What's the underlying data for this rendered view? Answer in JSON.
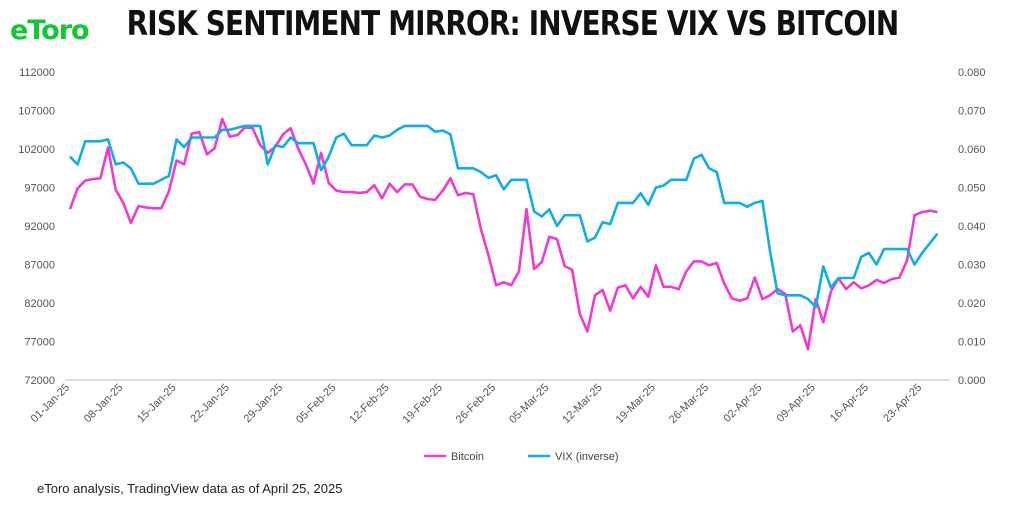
{
  "brand": {
    "logo_text": "eToro",
    "accent": "#13c636"
  },
  "source_note": "eToro analysis, TradingView data as of April 25, 2025",
  "chart_data": {
    "type": "line",
    "title": "RISK SENTIMENT MIRROR: INVERSE VIX VS BITCOIN",
    "x_tick_labels": [
      "01-Jan-25",
      "08-Jan-25",
      "15-Jan-25",
      "22-Jan-25",
      "29-Jan-25",
      "05-Feb-25",
      "12-Feb-25",
      "19-Feb-25",
      "26-Feb-25",
      "05-Mar-25",
      "12-Mar-25",
      "19-Mar-25",
      "26-Mar-25",
      "02-Apr-25",
      "09-Apr-25",
      "16-Apr-25",
      "23-Apr-25"
    ],
    "x_range_days": [
      0,
      115
    ],
    "y_left": {
      "min": 72000,
      "max": 112000,
      "ticks": [
        "72000",
        "77000",
        "82000",
        "87000",
        "92000",
        "97000",
        "102000",
        "107000",
        "112000"
      ]
    },
    "y_right": {
      "min": 0,
      "max": 0.08,
      "ticks": [
        "0.000",
        "0.010",
        "0.020",
        "0.030",
        "0.040",
        "0.050",
        "0.060",
        "0.070",
        "0.080"
      ]
    },
    "grid": false,
    "legend_position": "bottom",
    "series": [
      {
        "name": "Bitcoin",
        "axis": "left",
        "color": "#f03ad2",
        "x": [
          0,
          1,
          2,
          3,
          4,
          5,
          6,
          7,
          8,
          9,
          10,
          11,
          12,
          13,
          14,
          15,
          16,
          17,
          18,
          19,
          20,
          21,
          22,
          23,
          24,
          25,
          26,
          27,
          28,
          29,
          30,
          31,
          32,
          33,
          34,
          35,
          36,
          37,
          38,
          39,
          40,
          41,
          42,
          43,
          44,
          45,
          46,
          47,
          48,
          49,
          50,
          51,
          52,
          53,
          54,
          55,
          56,
          57,
          58,
          59,
          60,
          61,
          62,
          63,
          64,
          65,
          66,
          67,
          68,
          69,
          70,
          71,
          72,
          73,
          74,
          75,
          76,
          77,
          78,
          79,
          80,
          81,
          82,
          83,
          84,
          85,
          86,
          87,
          88,
          89,
          90,
          91,
          92,
          93,
          94,
          95,
          96,
          97,
          98,
          99,
          100,
          101,
          102,
          103,
          104,
          105,
          106,
          107,
          108,
          109,
          110,
          111,
          112,
          113,
          114
        ],
        "values": [
          94200,
          96900,
          97900,
          98100,
          98200,
          102200,
          96700,
          95000,
          92400,
          94600,
          94400,
          94300,
          94300,
          96500,
          100500,
          100000,
          104000,
          104200,
          101300,
          102100,
          105900,
          103600,
          103800,
          104800,
          104700,
          102500,
          101500,
          102300,
          103900,
          104700,
          102000,
          100000,
          97500,
          101500,
          97600,
          96600,
          96400,
          96400,
          96300,
          96400,
          97300,
          95600,
          97500,
          96400,
          97400,
          97400,
          95800,
          95500,
          95400,
          96600,
          98200,
          96000,
          96300,
          96100,
          91600,
          88200,
          84300,
          84700,
          84300,
          86100,
          94200,
          86400,
          87300,
          90600,
          90300,
          86800,
          86300,
          80600,
          78300,
          83000,
          83700,
          81000,
          84000,
          84300,
          82600,
          84100,
          82800,
          86900,
          84100,
          84100,
          83800,
          86100,
          87400,
          87400,
          86900,
          87200,
          84500,
          82600,
          82300,
          82600,
          85300,
          82500,
          83000,
          83800,
          83200,
          78300,
          79100,
          76000,
          82500,
          79500,
          83500,
          85200,
          83800,
          84700,
          83900,
          84300,
          85000,
          84600,
          85100,
          85300,
          87500,
          93400,
          93800,
          94000,
          93800
        ]
      },
      {
        "name": "VIX (inverse)",
        "axis": "right",
        "color": "#10aee6",
        "x": [
          0,
          1,
          2,
          3,
          4,
          5,
          6,
          7,
          8,
          9,
          10,
          11,
          12,
          13,
          14,
          15,
          16,
          17,
          18,
          19,
          20,
          21,
          22,
          23,
          24,
          25,
          26,
          27,
          28,
          29,
          30,
          31,
          32,
          33,
          34,
          35,
          36,
          37,
          38,
          39,
          40,
          41,
          42,
          43,
          44,
          45,
          46,
          47,
          48,
          49,
          50,
          51,
          52,
          53,
          54,
          55,
          56,
          57,
          58,
          59,
          60,
          61,
          62,
          63,
          64,
          65,
          66,
          67,
          68,
          69,
          70,
          71,
          72,
          73,
          74,
          75,
          76,
          77,
          78,
          79,
          80,
          81,
          82,
          83,
          84,
          85,
          86,
          87,
          88,
          89,
          90,
          91,
          92,
          93,
          94,
          95,
          96,
          97,
          98,
          99,
          100,
          101,
          102,
          103,
          104,
          105,
          106,
          107,
          108,
          109,
          110,
          111,
          112,
          113,
          114
        ],
        "values": [
          0.058,
          0.056,
          0.062,
          0.062,
          0.062,
          0.0625,
          0.056,
          0.0565,
          0.055,
          0.051,
          0.051,
          0.051,
          0.052,
          0.053,
          0.0625,
          0.0605,
          0.063,
          0.063,
          0.063,
          0.063,
          0.065,
          0.065,
          0.0655,
          0.066,
          0.066,
          0.066,
          0.056,
          0.061,
          0.0605,
          0.063,
          0.0615,
          0.0615,
          0.0615,
          0.0545,
          0.058,
          0.063,
          0.064,
          0.061,
          0.061,
          0.061,
          0.0635,
          0.063,
          0.0635,
          0.065,
          0.066,
          0.066,
          0.066,
          0.066,
          0.0645,
          0.0648,
          0.0638,
          0.055,
          0.055,
          0.055,
          0.054,
          0.0525,
          0.0532,
          0.0495,
          0.052,
          0.052,
          0.052,
          0.0438,
          0.0425,
          0.0443,
          0.04,
          0.0428,
          0.0428,
          0.0428,
          0.036,
          0.037,
          0.041,
          0.0405,
          0.046,
          0.046,
          0.046,
          0.0485,
          0.0455,
          0.05,
          0.0505,
          0.052,
          0.052,
          0.052,
          0.0575,
          0.0585,
          0.055,
          0.054,
          0.046,
          0.046,
          0.046,
          0.045,
          0.046,
          0.0465,
          0.0335,
          0.0225,
          0.022,
          0.022,
          0.022,
          0.021,
          0.019,
          0.0295,
          0.024,
          0.0265,
          0.0265,
          0.0265,
          0.032,
          0.033,
          0.03,
          0.034,
          0.034,
          0.034,
          0.034,
          0.03,
          0.033,
          0.0355,
          0.038
        ]
      }
    ]
  }
}
